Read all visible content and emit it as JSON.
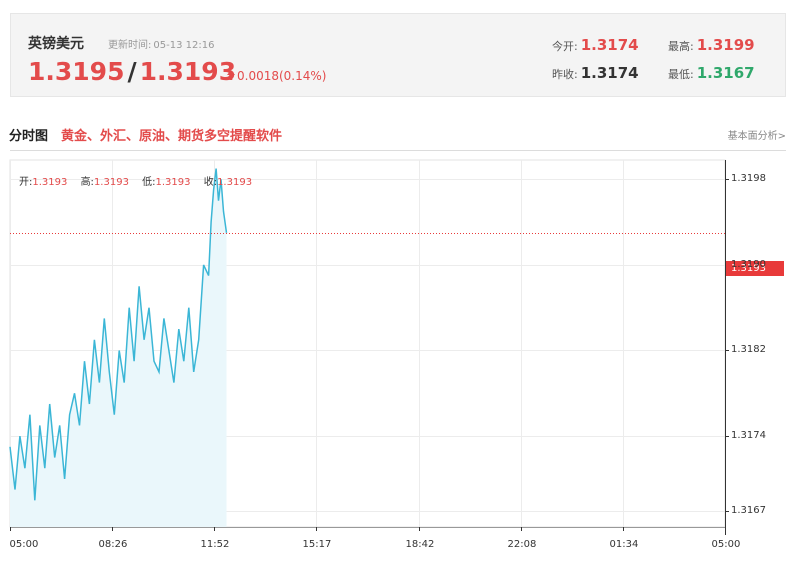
{
  "quote": {
    "name": "英镑美元",
    "updated_label": "更新时间:",
    "updated_value": "05-13 12:16",
    "bid": "1.3195",
    "separator": "/",
    "ask": "1.3193",
    "change": "0.0018(0.14%)",
    "change_arrow": "up-arrow-icon",
    "stats": {
      "open_label": "今开:",
      "open": "1.3174",
      "high_label": "最高:",
      "high": "1.3199",
      "prev_close_label": "昨收:",
      "prev_close": "1.3174",
      "low_label": "最低:",
      "low": "1.3167"
    }
  },
  "section": {
    "title": "分时图",
    "ad_link": "黄金、外汇、原油、期货多空提醒软件",
    "more_link": "基本面分析>"
  },
  "ohlc": {
    "open_label": "开:",
    "open": "1.3193",
    "high_label": "高:",
    "high": "1.3193",
    "low_label": "低:",
    "low": "1.3193",
    "close_label": "收:",
    "close": "1.3193"
  },
  "current_price_tag": "1.3193",
  "colors": {
    "up": "#e34b4b",
    "down": "#2fa86b",
    "line": "#3bb6d6",
    "area": "#eaf7fb",
    "current_tag": "#e83a3a"
  },
  "chart_data": {
    "type": "area",
    "y_ticks": [
      "1.3198",
      "1.3190",
      "1.3182",
      "1.3174",
      "1.3167"
    ],
    "x_ticks": [
      "05:00",
      "08:26",
      "11:52",
      "15:17",
      "18:42",
      "22:08",
      "01:34",
      "05:00"
    ],
    "ylim": [
      1.31655,
      1.31998
    ],
    "current_price": 1.3193,
    "series": [
      {
        "x": [
          "05:00",
          "05:10",
          "05:20",
          "05:30",
          "05:40",
          "05:50",
          "06:00",
          "06:10",
          "06:20",
          "06:30",
          "06:40",
          "06:50",
          "07:00",
          "07:10",
          "07:20",
          "07:30",
          "07:40",
          "07:50",
          "08:00",
          "08:10",
          "08:20",
          "08:30",
          "08:40",
          "08:50",
          "09:00",
          "09:10",
          "09:20",
          "09:30",
          "09:40",
          "09:50",
          "10:00",
          "10:10",
          "10:20",
          "10:30",
          "10:40",
          "10:50",
          "11:00",
          "11:10",
          "11:20",
          "11:30",
          "11:40",
          "11:45",
          "11:50",
          "11:55",
          "12:00",
          "12:05",
          "12:10",
          "12:16"
        ],
        "values": [
          1.3173,
          1.3169,
          1.3174,
          1.3171,
          1.3176,
          1.3168,
          1.3175,
          1.3171,
          1.3177,
          1.3172,
          1.3175,
          1.317,
          1.3176,
          1.3178,
          1.3175,
          1.3181,
          1.3177,
          1.3183,
          1.3179,
          1.3185,
          1.318,
          1.3176,
          1.3182,
          1.3179,
          1.3186,
          1.3181,
          1.3188,
          1.3183,
          1.3186,
          1.3181,
          1.318,
          1.3185,
          1.3182,
          1.3179,
          1.3184,
          1.3181,
          1.3186,
          1.318,
          1.3183,
          1.319,
          1.3189,
          1.3194,
          1.3197,
          1.3199,
          1.3196,
          1.3198,
          1.3195,
          1.3193
        ]
      }
    ]
  }
}
